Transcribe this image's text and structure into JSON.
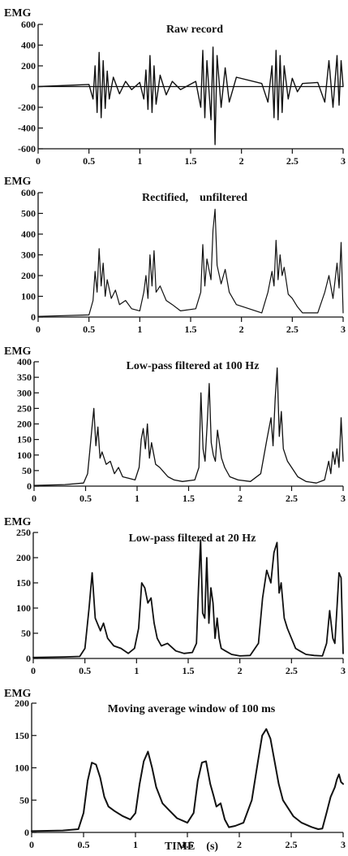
{
  "chart_data": [
    {
      "type": "line",
      "title": "Raw record",
      "ylabel": "EMG",
      "xlabel": "",
      "xlim": [
        0,
        3
      ],
      "ylim": [
        -600,
        600
      ],
      "x_ticks": [
        "0",
        "0.5",
        "1",
        "1.5",
        "2",
        "2.5",
        "3"
      ],
      "y_ticks": [
        "600",
        "400",
        "200",
        "0",
        "-200",
        "-400",
        "-600"
      ],
      "series": [
        {
          "values_x": [
            0.0,
            0.5,
            0.54,
            0.56,
            0.58,
            0.6,
            0.62,
            0.64,
            0.66,
            0.68,
            0.7,
            0.74,
            0.8,
            0.86,
            0.92,
            1.0,
            1.04,
            1.06,
            1.08,
            1.1,
            1.12,
            1.14,
            1.16,
            1.2,
            1.26,
            1.32,
            1.4,
            1.55,
            1.6,
            1.62,
            1.64,
            1.66,
            1.7,
            1.72,
            1.74,
            1.76,
            1.8,
            1.84,
            1.88,
            1.95,
            2.2,
            2.26,
            2.3,
            2.32,
            2.34,
            2.36,
            2.38,
            2.4,
            2.42,
            2.46,
            2.5,
            2.55,
            2.6,
            2.75,
            2.82,
            2.86,
            2.9,
            2.94,
            2.96,
            2.98,
            3.0
          ],
          "values_y": [
            0,
            20,
            -120,
            200,
            -250,
            330,
            -300,
            250,
            -210,
            150,
            -120,
            90,
            -70,
            50,
            -30,
            40,
            -120,
            160,
            -220,
            300,
            -250,
            200,
            -170,
            110,
            -80,
            50,
            -30,
            50,
            -200,
            350,
            -300,
            250,
            -320,
            380,
            -560,
            300,
            -200,
            180,
            -150,
            90,
            30,
            -150,
            200,
            -300,
            350,
            -320,
            300,
            -250,
            200,
            -120,
            80,
            -50,
            30,
            40,
            -150,
            250,
            -200,
            300,
            -180,
            250,
            0
          ]
        }
      ]
    },
    {
      "type": "line",
      "title": "Rectified,    unfiltered",
      "ylabel": "EMG",
      "xlabel": "",
      "xlim": [
        0,
        3
      ],
      "ylim": [
        0,
        600
      ],
      "x_ticks": [
        "0",
        "0.5",
        "1",
        "1.5",
        "2",
        "2.5",
        "3"
      ],
      "y_ticks": [
        "600",
        "500",
        "400",
        "300",
        "200",
        "100",
        "0"
      ],
      "series": [
        {
          "values_x": [
            0.0,
            0.5,
            0.54,
            0.56,
            0.58,
            0.6,
            0.62,
            0.64,
            0.66,
            0.68,
            0.72,
            0.76,
            0.8,
            0.86,
            0.92,
            1.0,
            1.04,
            1.06,
            1.08,
            1.1,
            1.12,
            1.14,
            1.16,
            1.2,
            1.26,
            1.32,
            1.4,
            1.55,
            1.6,
            1.62,
            1.64,
            1.66,
            1.7,
            1.72,
            1.74,
            1.76,
            1.8,
            1.84,
            1.88,
            1.95,
            2.2,
            2.26,
            2.3,
            2.32,
            2.34,
            2.36,
            2.38,
            2.4,
            2.42,
            2.46,
            2.5,
            2.55,
            2.6,
            2.75,
            2.82,
            2.86,
            2.9,
            2.94,
            2.96,
            2.98,
            3.0
          ],
          "values_y": [
            3,
            10,
            80,
            220,
            120,
            330,
            150,
            260,
            100,
            180,
            90,
            130,
            60,
            80,
            40,
            30,
            120,
            200,
            90,
            300,
            150,
            320,
            120,
            150,
            80,
            60,
            30,
            40,
            120,
            350,
            150,
            280,
            180,
            420,
            520,
            250,
            160,
            230,
            120,
            60,
            20,
            120,
            220,
            150,
            370,
            180,
            300,
            200,
            240,
            110,
            90,
            50,
            20,
            20,
            120,
            200,
            90,
            260,
            140,
            360,
            20
          ]
        }
      ]
    },
    {
      "type": "line",
      "title": "Low-pass filtered at 100 Hz",
      "ylabel": "EMG",
      "xlabel": "",
      "xlim": [
        0,
        3
      ],
      "ylim": [
        0,
        400
      ],
      "x_ticks": [
        "0",
        "0.5",
        "1",
        "1.5",
        "2",
        "2.5",
        "3"
      ],
      "y_ticks": [
        "400",
        "350",
        "300",
        "250",
        "200",
        "150",
        "100",
        "50",
        "0"
      ],
      "series": [
        {
          "values_x": [
            0.0,
            0.3,
            0.48,
            0.52,
            0.54,
            0.56,
            0.58,
            0.6,
            0.62,
            0.64,
            0.66,
            0.7,
            0.74,
            0.78,
            0.82,
            0.86,
            0.92,
            0.98,
            1.02,
            1.04,
            1.06,
            1.08,
            1.1,
            1.12,
            1.14,
            1.18,
            1.22,
            1.26,
            1.3,
            1.36,
            1.44,
            1.56,
            1.6,
            1.62,
            1.64,
            1.66,
            1.68,
            1.7,
            1.72,
            1.74,
            1.76,
            1.78,
            1.82,
            1.85,
            1.9,
            1.98,
            2.1,
            2.2,
            2.26,
            2.3,
            2.32,
            2.34,
            2.36,
            2.38,
            2.4,
            2.42,
            2.46,
            2.5,
            2.56,
            2.64,
            2.74,
            2.82,
            2.86,
            2.88,
            2.9,
            2.92,
            2.94,
            2.96,
            2.98,
            3.0
          ],
          "values_y": [
            2,
            5,
            10,
            40,
            110,
            180,
            250,
            130,
            190,
            90,
            110,
            70,
            80,
            40,
            60,
            30,
            25,
            20,
            60,
            150,
            185,
            120,
            200,
            90,
            140,
            70,
            60,
            45,
            30,
            20,
            15,
            20,
            60,
            300,
            120,
            80,
            200,
            330,
            140,
            100,
            80,
            180,
            90,
            60,
            30,
            20,
            15,
            40,
            150,
            220,
            130,
            280,
            380,
            160,
            240,
            120,
            80,
            60,
            30,
            15,
            10,
            20,
            80,
            40,
            110,
            70,
            120,
            60,
            220,
            80
          ]
        }
      ]
    },
    {
      "type": "line",
      "title": "Low-pass filtered at 20 Hz",
      "ylabel": "EMG",
      "xlabel": "",
      "xlim": [
        0,
        3
      ],
      "ylim": [
        0,
        250
      ],
      "x_ticks": [
        "0",
        "0.5",
        "1",
        "1.5",
        "2",
        "2.5",
        "3"
      ],
      "y_ticks": [
        "250",
        "200",
        "150",
        "100",
        "50",
        "0"
      ],
      "series": [
        {
          "values_x": [
            0.0,
            0.3,
            0.45,
            0.5,
            0.54,
            0.57,
            0.6,
            0.62,
            0.65,
            0.68,
            0.72,
            0.78,
            0.85,
            0.92,
            0.98,
            1.02,
            1.05,
            1.08,
            1.11,
            1.14,
            1.17,
            1.2,
            1.24,
            1.3,
            1.38,
            1.46,
            1.54,
            1.58,
            1.6,
            1.62,
            1.64,
            1.66,
            1.68,
            1.7,
            1.72,
            1.74,
            1.76,
            1.78,
            1.8,
            1.82,
            1.86,
            1.92,
            2.0,
            2.1,
            2.18,
            2.22,
            2.26,
            2.3,
            2.33,
            2.36,
            2.38,
            2.4,
            2.43,
            2.46,
            2.5,
            2.54,
            2.58,
            2.64,
            2.72,
            2.8,
            2.84,
            2.87,
            2.9,
            2.92,
            2.94,
            2.96,
            2.98,
            3.0
          ],
          "values_y": [
            2,
            3,
            4,
            20,
            100,
            170,
            80,
            70,
            55,
            70,
            40,
            25,
            20,
            10,
            20,
            60,
            150,
            140,
            110,
            120,
            70,
            40,
            25,
            30,
            15,
            10,
            12,
            30,
            140,
            235,
            90,
            80,
            200,
            70,
            140,
            110,
            40,
            80,
            40,
            20,
            15,
            8,
            5,
            6,
            30,
            120,
            175,
            150,
            210,
            230,
            130,
            150,
            80,
            60,
            40,
            20,
            15,
            8,
            6,
            5,
            30,
            95,
            40,
            30,
            100,
            170,
            160,
            10
          ]
        }
      ]
    },
    {
      "type": "line",
      "title": "Moving average window of 100 ms",
      "ylabel": "EMG",
      "xlabel": "TIME    (s)",
      "xlim": [
        0,
        3
      ],
      "ylim": [
        0,
        200
      ],
      "x_ticks": [
        "0",
        "0.5",
        "1",
        "1.5",
        "2",
        "2.5",
        "3"
      ],
      "y_ticks": [
        "200",
        "150",
        "100",
        "50",
        "0"
      ],
      "series": [
        {
          "values_x": [
            0.0,
            0.3,
            0.45,
            0.5,
            0.54,
            0.58,
            0.62,
            0.66,
            0.7,
            0.74,
            0.8,
            0.88,
            0.95,
            1.0,
            1.04,
            1.08,
            1.12,
            1.16,
            1.2,
            1.26,
            1.32,
            1.4,
            1.5,
            1.56,
            1.6,
            1.64,
            1.68,
            1.72,
            1.75,
            1.78,
            1.82,
            1.86,
            1.9,
            1.96,
            2.04,
            2.12,
            2.18,
            2.22,
            2.26,
            2.3,
            2.34,
            2.38,
            2.42,
            2.46,
            2.52,
            2.6,
            2.7,
            2.76,
            2.8,
            2.84,
            2.88,
            2.92,
            2.94,
            2.96,
            2.98,
            3.0
          ],
          "values_y": [
            2,
            3,
            5,
            30,
            80,
            108,
            105,
            85,
            55,
            40,
            33,
            25,
            20,
            30,
            75,
            110,
            125,
            100,
            70,
            45,
            35,
            22,
            15,
            30,
            80,
            108,
            110,
            75,
            58,
            40,
            45,
            20,
            8,
            10,
            15,
            50,
            110,
            150,
            160,
            145,
            110,
            75,
            50,
            40,
            25,
            15,
            8,
            5,
            6,
            30,
            55,
            70,
            82,
            90,
            78,
            75
          ]
        }
      ]
    }
  ]
}
